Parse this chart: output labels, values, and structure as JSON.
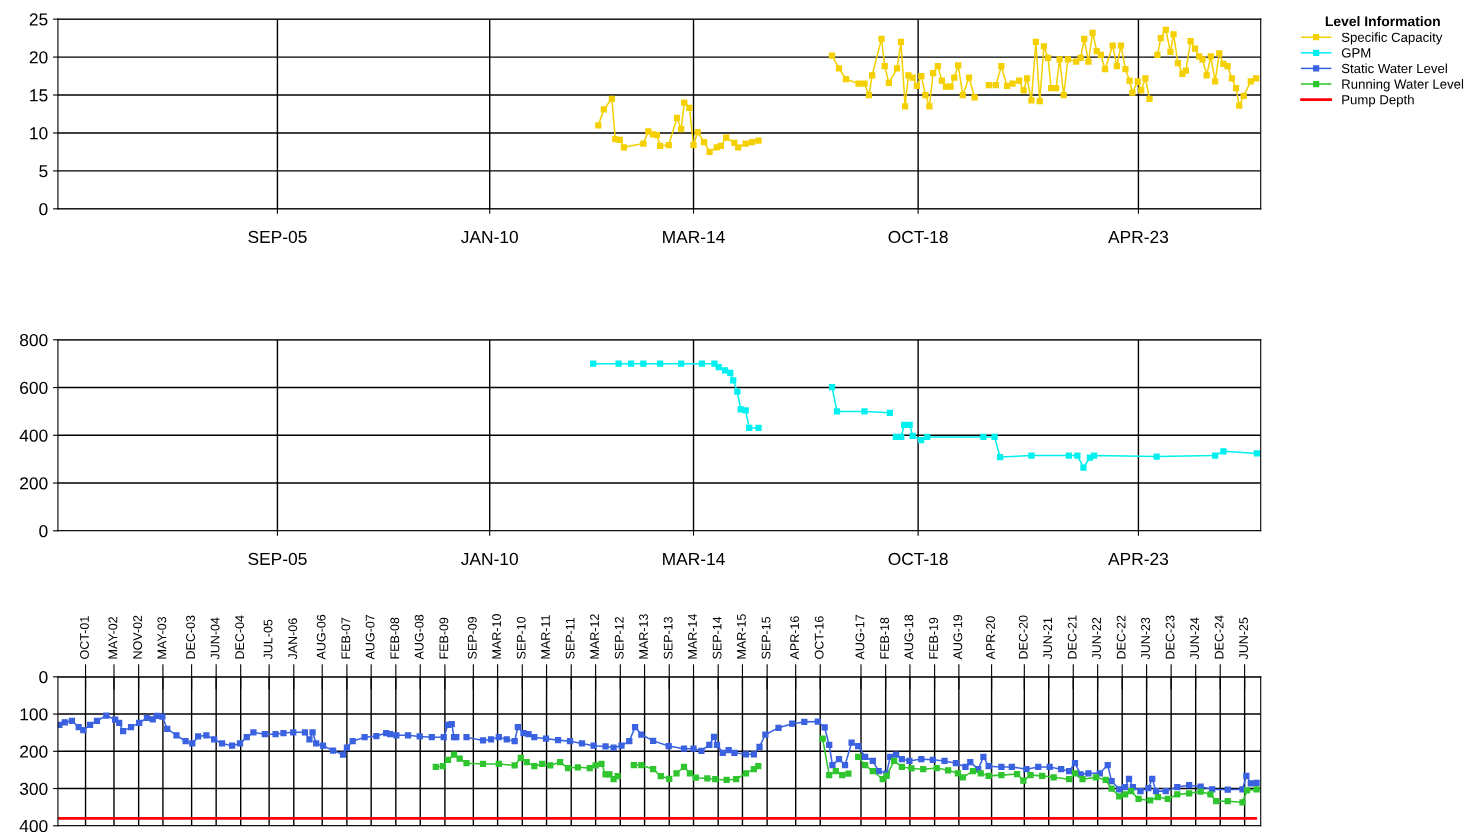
{
  "chart_data": [
    {
      "type": "line",
      "legend": "right",
      "legend_title": "Level Information",
      "grid": true,
      "marker": "square",
      "xlim": [
        "2001-03-09",
        "2025-09-29"
      ],
      "xticks": [
        {
          "value": "2005-09",
          "label": "SEP-05"
        },
        {
          "value": "2010-01",
          "label": "JAN-10"
        },
        {
          "value": "2014-03",
          "label": "MAR-14"
        },
        {
          "value": "2018-10",
          "label": "OCT-18"
        },
        {
          "value": "2023-04",
          "label": "APR-23"
        }
      ],
      "ylim": [
        0,
        25
      ],
      "yticks": [
        0,
        5,
        10,
        15,
        20,
        25
      ],
      "series": [
        {
          "name": "Specific Capacity",
          "color": "#f5d000",
          "x": [
            "2012-03-21",
            "2012-05-01",
            "2012-06-30",
            "2012-07-26",
            "2012-08-28",
            "2012-09-28",
            "2013-02-20",
            "2013-03-29",
            "2013-05-03",
            "2013-06-01",
            "2013-06-25",
            "2013-08-28",
            "2013-10-29",
            "2013-11-29",
            "2013-12-22",
            "2014-01-29",
            "2014-03-01",
            "2014-04-01",
            "2014-05-19",
            "2014-06-29",
            "2014-08-21",
            "2014-09-21",
            "2014-10-31",
            "2014-12-31",
            "2015-01-29",
            "2015-03-25",
            "2015-05-12",
            "2015-06-29",
            "2016-04-01",
            "2016-12-28",
            "2017-02-18",
            "2017-04-11",
            "2017-07-14",
            "2017-08-27",
            "2017-09-29",
            "2017-10-23",
            "2018-01-01",
            "2018-01-25",
            "2018-02-25",
            "2018-04-27",
            "2018-05-26",
            "2018-06-26",
            "2018-07-21",
            "2018-08-21",
            "2018-09-22",
            "2018-10-25",
            "2018-11-25",
            "2018-12-24",
            "2019-01-21",
            "2019-02-25",
            "2019-03-27",
            "2019-04-27",
            "2019-05-31",
            "2019-06-28",
            "2019-07-27",
            "2019-08-30",
            "2019-10-16",
            "2019-11-26",
            "2020-01-19",
            "2020-03-12",
            "2020-05-03",
            "2020-06-13",
            "2020-07-25",
            "2020-09-04",
            "2020-10-23",
            "2020-11-26",
            "2020-12-21",
            "2021-01-23",
            "2021-02-25",
            "2021-03-26",
            "2021-04-26",
            "2021-05-27",
            "2021-06-19",
            "2021-07-26",
            "2021-08-21",
            "2021-09-21",
            "2021-10-22",
            "2021-12-23",
            "2022-01-25",
            "2022-02-21",
            "2022-03-24",
            "2022-04-24",
            "2022-05-25",
            "2022-06-25",
            "2022-07-26",
            "2022-09-21",
            "2022-10-22",
            "2022-11-22",
            "2022-12-25",
            "2023-01-25",
            "2023-02-15",
            "2023-03-27",
            "2023-04-22",
            "2023-05-23",
            "2023-06-23",
            "2023-07-26",
            "2023-08-21",
            "2023-09-15",
            "2023-10-22",
            "2023-11-26",
            "2023-12-19",
            "2024-01-21",
            "2024-02-23",
            "2024-03-20",
            "2024-04-24",
            "2024-05-27",
            "2024-06-27",
            "2024-07-22",
            "2024-08-22",
            "2024-09-22",
            "2024-10-24",
            "2024-11-24",
            "2024-12-25",
            "2025-01-25",
            "2025-02-26",
            "2025-03-29",
            "2025-04-22",
            "2025-05-25",
            "2025-07-17",
            "2025-08-26"
          ],
          "values": [
            11.0,
            13.1,
            14.5,
            9.2,
            9.1,
            8.1,
            8.6,
            10.2,
            9.8,
            9.7,
            8.3,
            8.4,
            12.0,
            10.5,
            14.0,
            13.3,
            8.4,
            10.1,
            8.8,
            7.5,
            8.1,
            8.3,
            9.4,
            8.7,
            8.1,
            8.6,
            8.8,
            9.0,
            null,
            20.2,
            18.5,
            17.1,
            16.5,
            16.5,
            15.0,
            17.6,
            22.4,
            18.8,
            16.6,
            18.5,
            22.0,
            13.5,
            17.6,
            17.3,
            16.2,
            17.5,
            15.0,
            13.5,
            17.9,
            18.8,
            16.9,
            16.1,
            16.1,
            17.3,
            18.9,
            15.0,
            17.3,
            14.7,
            null,
            16.3,
            16.3,
            18.8,
            16.2,
            16.5,
            16.9,
            15.6,
            17.2,
            14.3,
            22.0,
            14.2,
            21.4,
            19.9,
            15.9,
            15.9,
            19.7,
            15.0,
            19.7,
            19.4,
            19.9,
            22.4,
            19.4,
            23.2,
            20.8,
            20.3,
            18.4,
            21.5,
            18.8,
            21.5,
            18.4,
            16.9,
            15.3,
            16.8,
            15.6,
            17.2,
            14.5,
            null,
            20.3,
            22.5,
            23.6,
            20.7,
            23.0,
            19.2,
            17.8,
            18.2,
            22.1,
            21.1,
            20.1,
            19.7,
            17.6,
            20.1,
            16.8,
            20.5,
            19.1,
            18.8,
            17.2,
            15.9,
            13.6,
            14.9,
            16.8,
            17.2
          ]
        }
      ]
    },
    {
      "type": "line",
      "grid": true,
      "marker": "square",
      "xlim": [
        "2001-03-09",
        "2025-09-29"
      ],
      "xticks": [
        {
          "value": "2005-09",
          "label": "SEP-05"
        },
        {
          "value": "2010-01",
          "label": "JAN-10"
        },
        {
          "value": "2014-03",
          "label": "MAR-14"
        },
        {
          "value": "2018-10",
          "label": "OCT-18"
        },
        {
          "value": "2023-04",
          "label": "APR-23"
        }
      ],
      "ylim": [
        0,
        800
      ],
      "yticks": [
        0,
        200,
        400,
        600,
        800
      ],
      "series": [
        {
          "name": "GPM",
          "color": "#00f0f0",
          "x": [
            "2012-02-12",
            "2012-08-19",
            "2012-11-20",
            "2013-02-20",
            "2013-06-25",
            "2013-11-29",
            "2014-05-03",
            "2014-08-04",
            "2014-09-05",
            "2014-10-22",
            "2014-11-30",
            "2014-12-22",
            "2015-01-22",
            "2015-02-16",
            "2015-03-25",
            "2015-04-20",
            "2015-06-29",
            "2016-04-01",
            "2016-12-28",
            "2017-02-03",
            "2017-08-27",
            "2018-03-04",
            "2018-03-27",
            "2018-04-18",
            "2018-05-28",
            "2018-06-19",
            "2018-07-30",
            "2018-08-21",
            "2018-10-23",
            "2018-12-08",
            "2020-01-31",
            "2020-04-23",
            "2020-06-03",
            "2021-01-23",
            "2021-10-29",
            "2022-01-01",
            "2022-02-15",
            "2022-04-04",
            "2022-05-05",
            "2023-08-15",
            "2024-10-24",
            "2024-12-25",
            "2025-08-31"
          ],
          "values": [
            700,
            700,
            700,
            700,
            700,
            700,
            700,
            700,
            685,
            672,
            661,
            630,
            583,
            509,
            504,
            431,
            431,
            null,
            602,
            500,
            500,
            494,
            null,
            393,
            393,
            444,
            444,
            398,
            380,
            393,
            393,
            393,
            309,
            315,
            315,
            315,
            265,
            306,
            315,
            311,
            315,
            333,
            324
          ]
        }
      ]
    },
    {
      "type": "line",
      "legend": "right",
      "grid": true,
      "marker": "square",
      "xlim": [
        "2001-03-09",
        "2025-09-29"
      ],
      "xticks": [
        {
          "value": "2001-10",
          "label": "OCT-01"
        },
        {
          "value": "2002-05",
          "label": "MAY-02"
        },
        {
          "value": "2002-11",
          "label": "NOV-02"
        },
        {
          "value": "2003-05",
          "label": "MAY-03"
        },
        {
          "value": "2003-12",
          "label": "DEC-03"
        },
        {
          "value": "2004-06",
          "label": "JUN-04"
        },
        {
          "value": "2004-12",
          "label": "DEC-04"
        },
        {
          "value": "2005-07",
          "label": "JUL-05"
        },
        {
          "value": "2006-01",
          "label": "JAN-06"
        },
        {
          "value": "2006-08",
          "label": "AUG-06"
        },
        {
          "value": "2007-02",
          "label": "FEB-07"
        },
        {
          "value": "2007-08",
          "label": "AUG-07"
        },
        {
          "value": "2008-02",
          "label": "FEB-08"
        },
        {
          "value": "2008-08",
          "label": "AUG-08"
        },
        {
          "value": "2009-02",
          "label": "FEB-09"
        },
        {
          "value": "2009-09",
          "label": "SEP-09"
        },
        {
          "value": "2010-03",
          "label": "MAR-10"
        },
        {
          "value": "2010-09",
          "label": "SEP-10"
        },
        {
          "value": "2011-03",
          "label": "MAR-11"
        },
        {
          "value": "2011-09",
          "label": "SEP-11"
        },
        {
          "value": "2012-03",
          "label": "MAR-12"
        },
        {
          "value": "2012-09",
          "label": "SEP-12"
        },
        {
          "value": "2013-03",
          "label": "MAR-13"
        },
        {
          "value": "2013-09",
          "label": "SEP-13"
        },
        {
          "value": "2014-03",
          "label": "MAR-14"
        },
        {
          "value": "2014-09",
          "label": "SEP-14"
        },
        {
          "value": "2015-03",
          "label": "MAR-15"
        },
        {
          "value": "2015-09",
          "label": "SEP-15"
        },
        {
          "value": "2016-04",
          "label": "APR-16"
        },
        {
          "value": "2016-10",
          "label": "OCT-16"
        },
        {
          "value": "2017-08",
          "label": "AUG-17"
        },
        {
          "value": "2018-02",
          "label": "FEB-18"
        },
        {
          "value": "2018-08",
          "label": "AUG-18"
        },
        {
          "value": "2019-02",
          "label": "FEB-19"
        },
        {
          "value": "2019-08",
          "label": "AUG-19"
        },
        {
          "value": "2020-04",
          "label": "APR-20"
        },
        {
          "value": "2020-12",
          "label": "DEC-20"
        },
        {
          "value": "2021-06",
          "label": "JUN-21"
        },
        {
          "value": "2021-12",
          "label": "DEC-21"
        },
        {
          "value": "2022-06",
          "label": "JUN-22"
        },
        {
          "value": "2022-12",
          "label": "DEC-22"
        },
        {
          "value": "2023-06",
          "label": "JUN-23"
        },
        {
          "value": "2023-12",
          "label": "DEC-23"
        },
        {
          "value": "2024-06",
          "label": "JUN-24"
        },
        {
          "value": "2024-12",
          "label": "DEC-24"
        },
        {
          "value": "2025-06",
          "label": "JUN-25"
        }
      ],
      "ylim": [
        400,
        0
      ],
      "yticks": [
        0,
        100,
        200,
        300,
        400
      ],
      "series": [
        {
          "name": "Static Water Level",
          "color": "#3a62e0",
          "x": [
            "2001-03-20",
            "2001-04-29",
            "2001-06-21",
            "2001-08-11",
            "2001-09-14",
            "2001-11-04",
            "2001-12-25",
            "2002-03-05",
            "2002-05-10",
            "2002-06-09",
            "2002-07-08",
            "2002-09-05",
            "2002-11-05",
            "2003-01-02",
            "2003-02-14",
            "2003-03-15",
            "2003-04-27",
            "2003-06-02",
            "2003-08-10",
            "2003-10-17",
            "2003-12-06",
            "2004-01-19",
            "2004-03-20",
            "2004-05-17",
            "2004-07-15",
            "2004-09-28",
            "2004-11-26",
            "2005-01-15",
            "2005-03-06",
            "2005-05-30",
            "2005-08-18",
            "2005-10-16",
            "2005-12-28",
            "2006-03-25",
            "2006-04-28",
            "2006-05-21",
            "2006-06-17",
            "2006-08-07",
            "2006-10-21",
            "2007-01-03",
            "2007-02-01",
            "2007-03-16",
            "2007-06-13",
            "2007-09-09",
            "2007-11-21",
            "2007-12-21",
            "2008-02-05",
            "2008-05-02",
            "2008-07-28",
            "2008-10-26",
            "2009-01-23",
            "2009-02-24",
            "2009-03-24",
            "2009-04-10",
            "2009-04-27",
            "2009-06-08",
            "2009-07-12",
            "2009-11-12",
            "2010-01-11",
            "2010-03-10",
            "2010-05-08",
            "2010-07-06",
            "2010-07-30",
            "2010-09-10",
            "2010-10-18",
            "2010-11-30",
            "2011-02-25",
            "2011-05-26",
            "2011-08-23",
            "2011-11-20",
            "2012-02-15",
            "2012-05-14",
            "2012-07-13",
            "2012-09-10",
            "2012-11-07",
            "2012-12-20",
            "2013-02-05",
            "2013-05-04",
            "2013-08-28",
            "2013-12-20",
            "2014-03-01",
            "2014-04-29",
            "2014-06-27",
            "2014-08-01",
            "2014-08-23",
            "2014-10-05",
            "2014-11-18",
            "2014-12-31",
            "2015-03-27",
            "2015-05-25",
            "2015-07-06",
            "2015-08-19",
            "2015-11-25",
            "2016-03-06",
            "2016-06-04",
            "2016-09-13",
            "2016-11-03",
            "2016-12-07",
            "2016-12-31",
            "2017-02-18",
            "2017-04-04",
            "2017-05-23",
            "2017-07-11",
            "2017-09-01",
            "2017-10-28",
            "2017-12-11",
            "2018-02-08",
            "2018-03-07",
            "2018-04-20",
            "2018-06-02",
            "2018-07-28",
            "2018-10-25",
            "2019-01-19",
            "2019-04-16",
            "2019-07-10",
            "2019-09-19",
            "2019-10-25",
            "2019-12-23",
            "2020-01-31",
            "2020-03-10",
            "2020-06-13",
            "2020-08-30",
            "2020-12-17",
            "2021-03-15",
            "2021-06-08",
            "2021-09-02",
            "2021-10-31",
            "2021-12-14",
            "2022-01-25",
            "2022-03-24",
            "2022-06-17",
            "2022-08-15",
            "2022-09-13",
            "2022-11-09",
            "2022-12-23",
            "2023-01-21",
            "2023-02-19",
            "2023-04-16",
            "2023-06-14",
            "2023-07-13",
            "2023-08-10",
            "2023-10-22",
            "2024-01-16",
            "2024-04-13",
            "2024-07-08",
            "2024-10-02",
            "2025-01-26",
            "2025-05-16",
            "2025-06-14",
            "2025-07-17",
            "2025-08-29"
          ],
          "values": [
            129,
            122,
            118,
            135,
            143,
            129,
            118,
            104,
            115,
            124,
            146,
            135,
            124,
            110,
            114,
            105,
            107,
            140,
            157,
            173,
            179,
            160,
            157,
            168,
            179,
            185,
            179,
            162,
            149,
            154,
            154,
            151,
            149,
            149,
            168,
            149,
            179,
            185,
            198,
            209,
            190,
            173,
            162,
            159,
            151,
            154,
            157,
            157,
            160,
            162,
            162,
            129,
            127,
            162,
            162,
            null,
            162,
            171,
            168,
            162,
            168,
            173,
            135,
            151,
            154,
            162,
            166,
            170,
            173,
            179,
            185,
            187,
            190,
            185,
            173,
            135,
            155,
            172,
            186,
            193,
            193,
            199,
            183,
            161,
            183,
            204,
            197,
            204,
            208,
            208,
            188,
            155,
            137,
            126,
            121,
            120,
            136,
            183,
            237,
            221,
            237,
            177,
            186,
            215,
            226,
            253,
            259,
            215,
            209,
            221,
            226,
            221,
            223,
            226,
            232,
            242,
            229,
            248,
            215,
            240,
            242,
            242,
            248,
            242,
            242,
            248,
            253,
            232,
            262,
            259,
            259,
            237,
            280,
            302,
            296,
            274,
            296,
            307,
            299,
            274,
            307,
            307,
            296,
            291,
            295,
            302,
            303,
            302,
            266,
            286,
            285
          ]
        },
        {
          "name": "Running Water Level",
          "color": "#2fc52f",
          "x": [
            "2008-11-25",
            "2009-01-17",
            "2009-02-24",
            "2009-04-10",
            "2009-05-22",
            "2009-07-12",
            "2009-11-12",
            "2010-03-10",
            "2010-07-06",
            "2010-08-21",
            "2010-10-04",
            "2010-11-30",
            "2011-01-27",
            "2011-03-29",
            "2011-06-10",
            "2011-08-08",
            "2011-10-20",
            "2012-01-17",
            "2012-03-01",
            "2012-04-14",
            "2012-05-14",
            "2012-06-12",
            "2012-07-13",
            "2012-08-12",
            "2012-10-07",
            "2012-12-11",
            "2013-02-05",
            "2013-05-04",
            "2013-06-30",
            "2013-09-01",
            "2013-09-28",
            "2013-10-25",
            "2013-12-20",
            "2014-02-02",
            "2014-03-18",
            "2014-06-12",
            "2014-08-10",
            "2014-11-03",
            "2015-01-13",
            "2015-03-27",
            "2015-05-25",
            "2015-06-27",
            "2016-04-01",
            "2016-10-19",
            "2016-12-07",
            "2017-01-25",
            "2017-03-14",
            "2017-04-29",
            "2017-06-01",
            "2017-07-11",
            "2017-09-01",
            "2017-10-28",
            "2018-01-10",
            "2018-02-08",
            "2018-04-05",
            "2018-06-02",
            "2018-08-12",
            "2018-11-08",
            "2019-02-17",
            "2019-05-13",
            "2019-07-25",
            "2019-08-30",
            "2019-11-14",
            "2020-01-11",
            "2020-03-10",
            "2020-06-13",
            "2020-10-08",
            "2020-11-24",
            "2021-01-16",
            "2021-04-13",
            "2021-07-08",
            "2021-10-31",
            "2021-12-14",
            "2022-02-08",
            "2022-05-19",
            "2022-07-31",
            "2022-09-13",
            "2022-11-09",
            "2022-12-23",
            "2023-02-05",
            "2023-04-02",
            "2023-06-28",
            "2023-08-24",
            "2023-11-05",
            "2024-01-16",
            "2024-04-13",
            "2024-07-08",
            "2024-09-19",
            "2024-10-31",
            "2025-01-26",
            "2025-05-16",
            "2025-06-19",
            "2025-08-29"
          ],
          "values": [
            242,
            240,
            223,
            209,
            220,
            232,
            234,
            234,
            238,
            218,
            229,
            240,
            234,
            238,
            229,
            245,
            243,
            245,
            238,
            234,
            262,
            262,
            275,
            267,
            null,
            237,
            237,
            248,
            267,
            274,
            null,
            259,
            242,
            259,
            271,
            273,
            275,
            277,
            275,
            259,
            248,
            240,
            null,
            166,
            264,
            253,
            264,
            260,
            null,
            215,
            237,
            253,
            275,
            266,
            226,
            242,
            246,
            248,
            245,
            251,
            259,
            270,
            253,
            259,
            266,
            264,
            261,
            279,
            264,
            266,
            270,
            275,
            259,
            275,
            270,
            277,
            300,
            321,
            316,
            307,
            328,
            332,
            323,
            328,
            316,
            313,
            308,
            316,
            334,
            334,
            337,
            305,
            302
          ]
        },
        {
          "name": "Pump Depth",
          "color": "#ff0000",
          "marker": "none",
          "x": [
            "2001-03-20",
            "2025-08-22"
          ],
          "values": [
            380,
            380
          ]
        }
      ]
    }
  ]
}
